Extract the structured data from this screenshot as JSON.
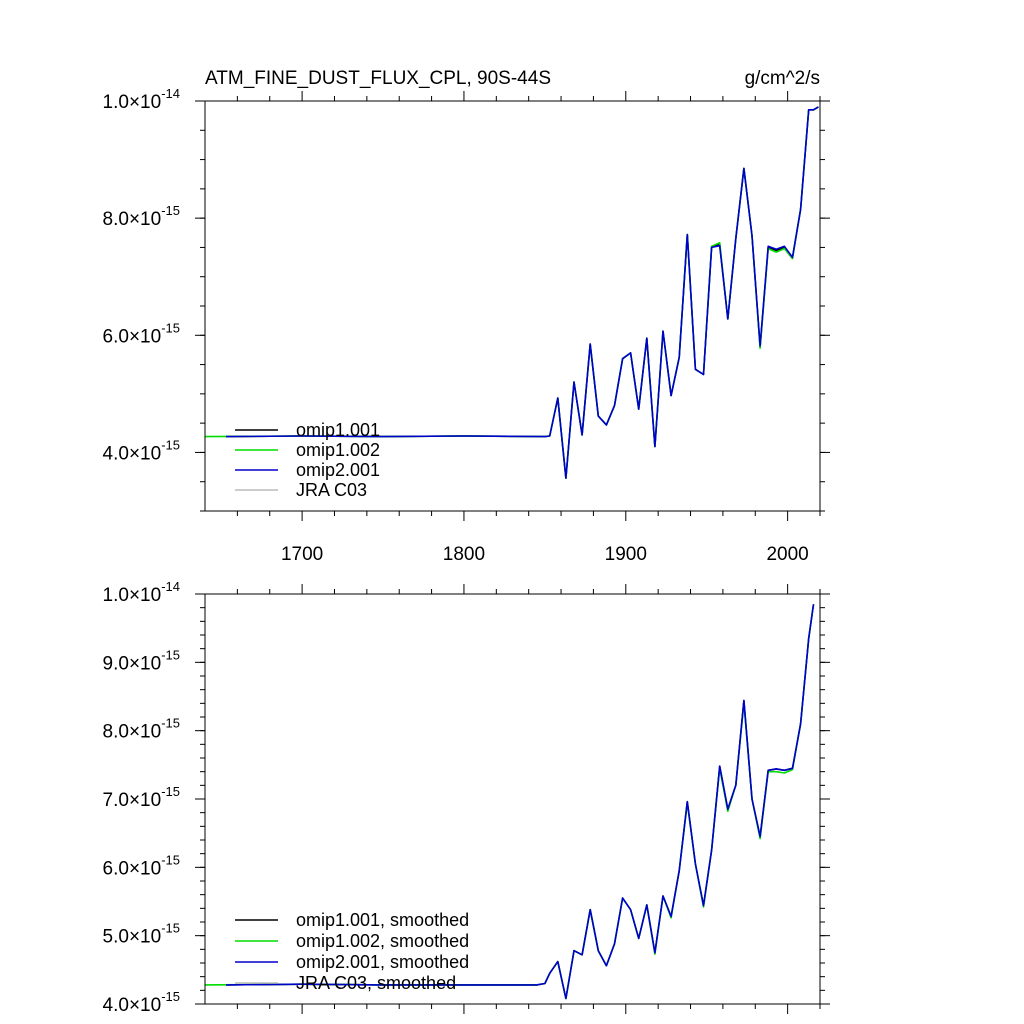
{
  "chart_data": [
    {
      "type": "line",
      "title": "ATM_FINE_DUST_FLUX_CPL, 90S-44S",
      "units": "g/cm^2/s",
      "xlabel": "",
      "ylabel": "",
      "xlim": [
        1640,
        2020
      ],
      "ylim": [
        3.0,
        10.0
      ],
      "y_exponent_note": "tick values x 10^-15",
      "x_ticks": [
        1700,
        1800,
        1900,
        2000
      ],
      "x_tick_labels": [
        "1700",
        "1800",
        "1900",
        "2000"
      ],
      "y_ticks": [
        {
          "value": 4.0,
          "mantissa": "4.0",
          "times": "×10",
          "exponent": "-15"
        },
        {
          "value": 6.0,
          "mantissa": "6.0",
          "times": "×10",
          "exponent": "-15"
        },
        {
          "value": 8.0,
          "mantissa": "8.0",
          "times": "×10",
          "exponent": "-15"
        },
        {
          "value": 10.0,
          "mantissa": "1.0",
          "times": "×10",
          "exponent": "-14"
        }
      ],
      "legend": {
        "position": "bottom-left",
        "entries": [
          {
            "label": "omip1.001",
            "color": "#000000"
          },
          {
            "label": "omip1.002",
            "color": "#00dd00"
          },
          {
            "label": "omip2.001",
            "color": "#0000cc"
          },
          {
            "label": "JRA C03",
            "color": "#bbbbbb"
          }
        ]
      },
      "x": [
        1653,
        1700,
        1750,
        1800,
        1850,
        1853,
        1858,
        1863,
        1868,
        1873,
        1878,
        1883,
        1888,
        1893,
        1898,
        1903,
        1908,
        1913,
        1918,
        1923,
        1928,
        1933,
        1938,
        1943,
        1948,
        1953,
        1958,
        1963,
        1968,
        1973,
        1978,
        1983,
        1988,
        1993,
        1998,
        2003,
        2008,
        2013,
        2016,
        2019
      ],
      "series": [
        {
          "name": "omip1.001",
          "color": "#000000",
          "start": 1653,
          "values": [
            4.27,
            4.28,
            4.27,
            4.28,
            4.27,
            4.28,
            4.93,
            3.56,
            5.2,
            4.3,
            5.85,
            4.62,
            4.47,
            4.8,
            5.6,
            5.7,
            4.74,
            5.95,
            4.1,
            6.07,
            4.97,
            5.62,
            7.72,
            5.42,
            5.33,
            7.5,
            7.55,
            6.28,
            7.65,
            8.85,
            7.7,
            5.8,
            7.5,
            7.45,
            7.5,
            7.33,
            8.15,
            9.85,
            9.85,
            9.9
          ]
        },
        {
          "name": "omip1.002",
          "color": "#00dd00",
          "start": 1640,
          "values": [
            4.27,
            4.28,
            4.27,
            4.28,
            4.27,
            4.28,
            4.93,
            3.56,
            5.2,
            4.3,
            5.85,
            4.62,
            4.47,
            4.8,
            5.6,
            5.7,
            4.74,
            5.95,
            4.1,
            6.07,
            4.97,
            5.62,
            7.72,
            5.42,
            5.33,
            7.52,
            7.58,
            6.28,
            7.65,
            8.85,
            7.7,
            5.78,
            7.48,
            7.42,
            7.48,
            7.31,
            8.15,
            9.85,
            9.85,
            9.9
          ]
        },
        {
          "name": "omip2.001",
          "color": "#0000cc",
          "start": 1653,
          "values": [
            4.27,
            4.28,
            4.27,
            4.28,
            4.27,
            4.28,
            4.93,
            3.56,
            5.2,
            4.3,
            5.85,
            4.62,
            4.47,
            4.8,
            5.6,
            5.7,
            4.74,
            5.95,
            4.1,
            6.07,
            4.97,
            5.62,
            7.72,
            5.42,
            5.33,
            7.5,
            7.53,
            6.28,
            7.65,
            8.85,
            7.7,
            5.82,
            7.52,
            7.47,
            7.52,
            7.33,
            8.15,
            9.85,
            9.85,
            9.9
          ]
        }
      ]
    },
    {
      "type": "line",
      "title": "",
      "xlabel": "",
      "ylabel": "",
      "xlim": [
        1640,
        2020
      ],
      "ylim": [
        4.0,
        10.0
      ],
      "y_exponent_note": "tick values x 10^-15",
      "x_ticks": [
        1700,
        1800,
        1900,
        2000
      ],
      "y_ticks": [
        {
          "value": 4.0,
          "mantissa": "4.0",
          "times": "×10",
          "exponent": "-15"
        },
        {
          "value": 5.0,
          "mantissa": "5.0",
          "times": "×10",
          "exponent": "-15"
        },
        {
          "value": 6.0,
          "mantissa": "6.0",
          "times": "×10",
          "exponent": "-15"
        },
        {
          "value": 7.0,
          "mantissa": "7.0",
          "times": "×10",
          "exponent": "-15"
        },
        {
          "value": 8.0,
          "mantissa": "8.0",
          "times": "×10",
          "exponent": "-15"
        },
        {
          "value": 9.0,
          "mantissa": "9.0",
          "times": "×10",
          "exponent": "-15"
        },
        {
          "value": 10.0,
          "mantissa": "1.0",
          "times": "×10",
          "exponent": "-14"
        }
      ],
      "legend": {
        "position": "bottom-left",
        "entries": [
          {
            "label": "omip1.001, smoothed",
            "color": "#000000"
          },
          {
            "label": "omip1.002, smoothed",
            "color": "#00dd00"
          },
          {
            "label": "omip2.001, smoothed",
            "color": "#0000cc"
          },
          {
            "label": "JRA C03, smoothed",
            "color": "#bbbbbb"
          }
        ]
      },
      "x": [
        1653,
        1700,
        1750,
        1800,
        1845,
        1850,
        1853,
        1858,
        1863,
        1868,
        1873,
        1878,
        1883,
        1888,
        1893,
        1898,
        1903,
        1908,
        1913,
        1918,
        1923,
        1928,
        1933,
        1938,
        1943,
        1948,
        1953,
        1958,
        1963,
        1968,
        1973,
        1978,
        1983,
        1988,
        1993,
        1998,
        2003,
        2008,
        2013,
        2016
      ],
      "series": [
        {
          "name": "omip1.001, smoothed",
          "color": "#000000",
          "start": 1653,
          "values": [
            4.28,
            4.29,
            4.28,
            4.28,
            4.28,
            4.3,
            4.45,
            4.62,
            4.08,
            4.78,
            4.72,
            5.38,
            4.78,
            4.56,
            4.88,
            5.55,
            5.38,
            4.96,
            5.45,
            4.75,
            5.58,
            5.28,
            5.95,
            6.96,
            6.05,
            5.44,
            6.25,
            7.48,
            6.85,
            7.2,
            8.44,
            7.0,
            6.45,
            7.42,
            7.44,
            7.42,
            7.45,
            8.1,
            9.35,
            9.85
          ]
        },
        {
          "name": "omip1.002, smoothed",
          "color": "#00dd00",
          "start": 1640,
          "values": [
            4.28,
            4.29,
            4.28,
            4.28,
            4.28,
            4.3,
            4.45,
            4.62,
            4.08,
            4.78,
            4.72,
            5.38,
            4.78,
            4.56,
            4.88,
            5.55,
            5.38,
            4.96,
            5.45,
            4.73,
            5.58,
            5.26,
            5.95,
            6.94,
            6.05,
            5.42,
            6.25,
            7.45,
            6.82,
            7.2,
            8.4,
            7.0,
            6.42,
            7.4,
            7.4,
            7.38,
            7.43,
            8.1,
            9.35,
            9.85
          ]
        },
        {
          "name": "omip2.001, smoothed",
          "color": "#0000cc",
          "start": 1653,
          "values": [
            4.28,
            4.29,
            4.28,
            4.28,
            4.28,
            4.3,
            4.45,
            4.62,
            4.08,
            4.78,
            4.72,
            5.38,
            4.78,
            4.56,
            4.88,
            5.55,
            5.38,
            4.96,
            5.45,
            4.75,
            5.58,
            5.28,
            5.95,
            6.96,
            6.05,
            5.44,
            6.25,
            7.48,
            6.85,
            7.2,
            8.44,
            7.0,
            6.45,
            7.42,
            7.44,
            7.42,
            7.45,
            8.1,
            9.35,
            9.85
          ]
        }
      ]
    }
  ]
}
